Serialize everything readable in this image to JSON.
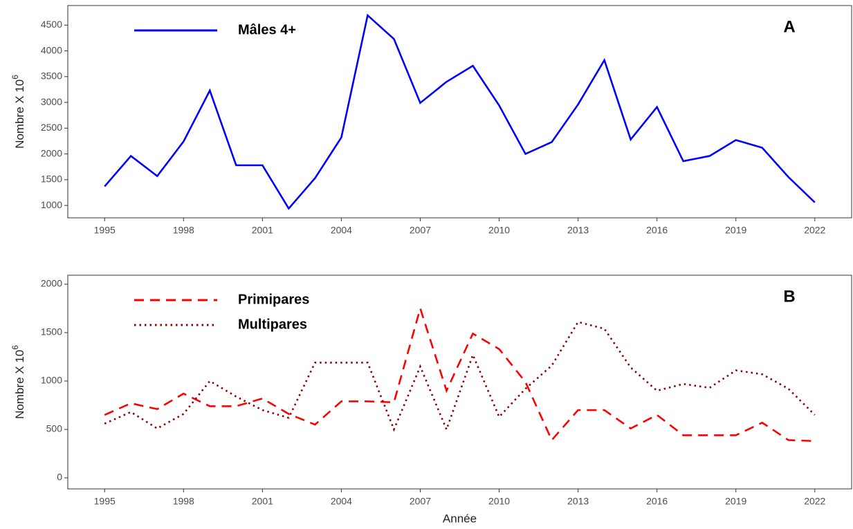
{
  "chart_data": [
    {
      "type": "line",
      "tag": "A",
      "ylabel": "Nombre X 10",
      "ylabel_sup": "6",
      "x": [
        1995,
        1996,
        1997,
        1998,
        1999,
        2000,
        2001,
        2002,
        2003,
        2004,
        2005,
        2006,
        2007,
        2008,
        2009,
        2010,
        2011,
        2012,
        2013,
        2014,
        2015,
        2016,
        2017,
        2018,
        2019,
        2020,
        2021,
        2022
      ],
      "series": [
        {
          "name": "Mâles 4+",
          "color": "#0000ff",
          "dash": "solid",
          "values": [
            1370,
            1960,
            1570,
            2240,
            3230,
            1780,
            1780,
            940,
            1530,
            2320,
            4690,
            4230,
            2990,
            3400,
            3710,
            2940,
            2000,
            2230,
            2960,
            3820,
            2280,
            2910,
            1860,
            1960,
            2270,
            2120,
            1550,
            1060
          ]
        }
      ],
      "xlim": [
        1993.6,
        2023.4
      ],
      "xticks": [
        1995,
        1998,
        2001,
        2004,
        2007,
        2010,
        2013,
        2016,
        2019,
        2022
      ],
      "ylim": [
        760,
        4880
      ],
      "yticks": [
        1000,
        1500,
        2000,
        2500,
        3000,
        3500,
        4000,
        4500
      ],
      "legend": "top-left",
      "grid": false
    },
    {
      "type": "line",
      "tag": "B",
      "ylabel": "Nombre X 10",
      "ylabel_sup": "6",
      "xlabel": "Année",
      "x": [
        1995,
        1996,
        1997,
        1998,
        1999,
        2000,
        2001,
        2002,
        2003,
        2004,
        2005,
        2006,
        2007,
        2008,
        2009,
        2010,
        2011,
        2012,
        2013,
        2014,
        2015,
        2016,
        2017,
        2018,
        2019,
        2020,
        2021,
        2022
      ],
      "series": [
        {
          "name": "Primipares",
          "color": "#ff0000",
          "dash": "dashed",
          "values": [
            650,
            770,
            710,
            870,
            740,
            740,
            820,
            660,
            550,
            790,
            790,
            780,
            1750,
            900,
            1490,
            1330,
            990,
            390,
            700,
            700,
            510,
            650,
            440,
            440,
            440,
            570,
            390,
            380
          ]
        },
        {
          "name": "Multipares",
          "color": "#8b0000",
          "dash": "dotted",
          "values": [
            560,
            680,
            510,
            660,
            1000,
            840,
            700,
            620,
            1190,
            1190,
            1190,
            500,
            1150,
            500,
            1270,
            630,
            920,
            1160,
            1610,
            1540,
            1140,
            900,
            970,
            930,
            1110,
            1070,
            920,
            650
          ]
        }
      ],
      "xlim": [
        1993.6,
        2023.4
      ],
      "xticks": [
        1995,
        1998,
        2001,
        2004,
        2007,
        2010,
        2013,
        2016,
        2019,
        2022
      ],
      "ylim": [
        -114,
        2093
      ],
      "yticks": [
        0,
        500,
        1000,
        1500,
        2000
      ],
      "legend": "top-left",
      "grid": false
    }
  ]
}
